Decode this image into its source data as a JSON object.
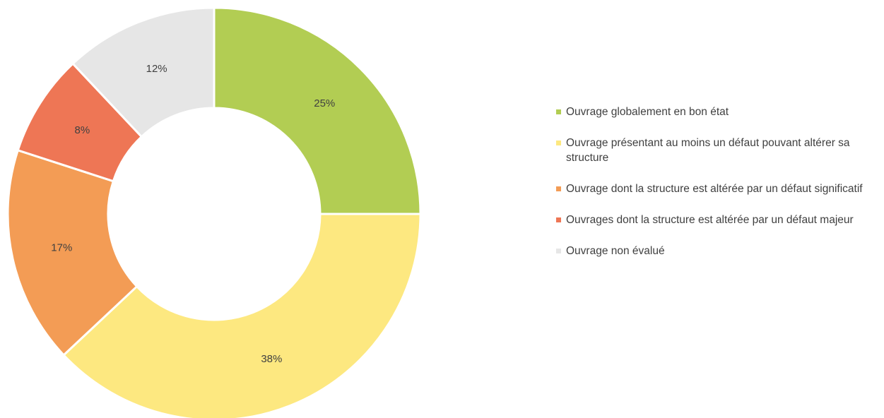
{
  "chart_data": {
    "type": "pie",
    "donut": true,
    "legend_position": "right",
    "categories": [
      "Ouvrage globalement en bon état",
      "Ouvrage présentant au moins un défaut pouvant altérer sa structure",
      "Ouvrage dont la structure est altérée par un défaut significatif",
      "Ouvrages dont la structure est altérée par un défaut majeur",
      "Ouvrage non évalué"
    ],
    "values": [
      25,
      38,
      17,
      8,
      12
    ],
    "data_labels": [
      "25%",
      "38%",
      "17%",
      "8%",
      "12%"
    ],
    "colors": [
      "#b2cd53",
      "#fde880",
      "#f39c55",
      "#ee7655",
      "#e6e6e6"
    ]
  }
}
